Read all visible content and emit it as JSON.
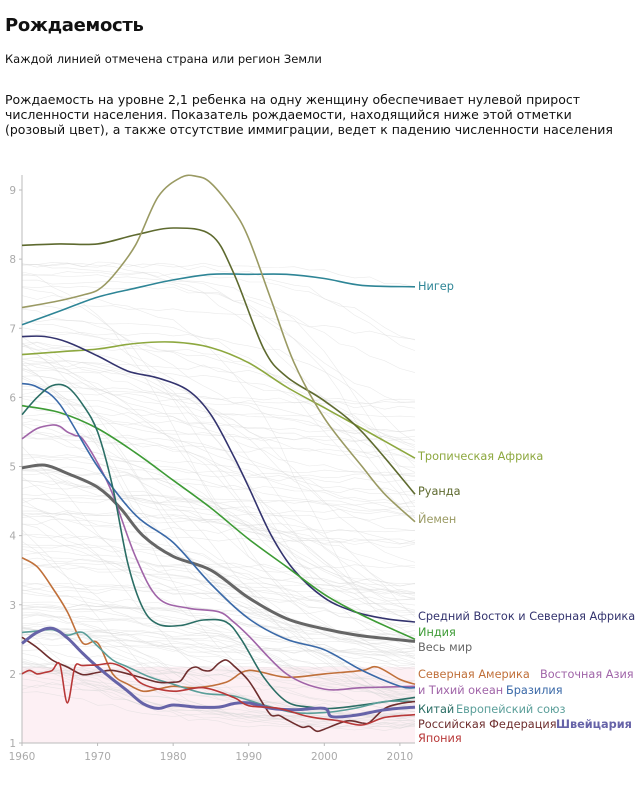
{
  "title": "Рождаемость",
  "subtitle": "Каждой линией отмечена страна или регион Земли",
  "description": "Рождаемость на уровне 2,1 ребенка на одну женщину обеспечивает нулевой прирост численности населения. Показатель рождаемости, находящийся ниже этой отметки (розовый цвет), а также отсутствие иммиграции, ведет к падению численности населения",
  "chart_data": {
    "type": "line",
    "title": "Рождаемость",
    "xlabel": "",
    "ylabel": "",
    "xlim": [
      1960,
      2012
    ],
    "ylim": [
      1,
      9.2
    ],
    "x_ticks": [
      "1960",
      "1970",
      "1980",
      "1990",
      "2000",
      "2010"
    ],
    "y_ticks": [
      "1",
      "2",
      "3",
      "4",
      "5",
      "6",
      "7",
      "8",
      "9"
    ],
    "replacement_level": 2.1,
    "replacement_fill": "#fdf0f4",
    "background_lines_color": "#d8d8d8",
    "series": [
      {
        "name": "Нигер",
        "color": "#2e8596",
        "width": 1.6,
        "x": [
          1960,
          1965,
          1970,
          1975,
          1980,
          1985,
          1990,
          1995,
          2000,
          2005,
          2012
        ],
        "values": [
          7.05,
          7.25,
          7.45,
          7.58,
          7.7,
          7.78,
          7.78,
          7.78,
          7.72,
          7.62,
          7.6
        ]
      },
      {
        "name": "Тропическая Африка",
        "color": "#8da83f",
        "width": 1.6,
        "x": [
          1960,
          1965,
          1970,
          1975,
          1980,
          1985,
          1990,
          1995,
          2000,
          2005,
          2012
        ],
        "values": [
          6.62,
          6.66,
          6.7,
          6.78,
          6.8,
          6.72,
          6.5,
          6.15,
          5.85,
          5.55,
          5.12
        ]
      },
      {
        "name": "Руанда",
        "color": "#5e6a2f",
        "width": 1.6,
        "x": [
          1960,
          1965,
          1970,
          1975,
          1980,
          1985,
          1988,
          1992,
          1995,
          2000,
          2005,
          2012
        ],
        "values": [
          8.2,
          8.22,
          8.22,
          8.35,
          8.45,
          8.35,
          7.8,
          6.7,
          6.3,
          5.95,
          5.5,
          4.6
        ]
      },
      {
        "name": "Йемен",
        "color": "#9a9a63",
        "width": 1.6,
        "x": [
          1960,
          1965,
          1968,
          1970,
          1972,
          1975,
          1978,
          1981,
          1983,
          1985,
          1988,
          1990,
          1993,
          1996,
          2000,
          2005,
          2008,
          2012
        ],
        "values": [
          7.3,
          7.4,
          7.48,
          7.55,
          7.75,
          8.2,
          8.9,
          9.18,
          9.2,
          9.1,
          8.7,
          8.3,
          7.4,
          6.5,
          5.7,
          5.0,
          4.6,
          4.2
        ]
      },
      {
        "name": "Средний Восток и Северная Африка",
        "color": "#33336e",
        "width": 1.6,
        "x": [
          1960,
          1963,
          1966,
          1970,
          1974,
          1978,
          1982,
          1985,
          1988,
          1990,
          1993,
          1996,
          2000,
          2004,
          2008,
          2012
        ],
        "values": [
          6.88,
          6.88,
          6.8,
          6.6,
          6.38,
          6.28,
          6.1,
          5.75,
          5.15,
          4.7,
          4.0,
          3.5,
          3.1,
          2.9,
          2.8,
          2.75
        ]
      },
      {
        "name": "Индия",
        "color": "#3d9b35",
        "width": 1.6,
        "x": [
          1960,
          1965,
          1970,
          1975,
          1980,
          1985,
          1990,
          1995,
          2000,
          2005,
          2012
        ],
        "values": [
          5.88,
          5.78,
          5.55,
          5.2,
          4.8,
          4.4,
          3.95,
          3.55,
          3.15,
          2.85,
          2.5
        ]
      },
      {
        "name": "Весь мир",
        "color": "#666666",
        "width": 3,
        "x": [
          1960,
          1963,
          1966,
          1970,
          1973,
          1976,
          1980,
          1985,
          1990,
          1995,
          2000,
          2005,
          2012
        ],
        "values": [
          4.98,
          5.02,
          4.9,
          4.7,
          4.4,
          4.0,
          3.7,
          3.5,
          3.1,
          2.8,
          2.65,
          2.55,
          2.47
        ]
      },
      {
        "name": "Северная Америка",
        "color": "#c0703a",
        "width": 1.6,
        "x": [
          1960,
          1962,
          1964,
          1966,
          1968,
          1970,
          1972,
          1974,
          1976,
          1978,
          1980,
          1983,
          1987,
          1990,
          1995,
          2000,
          2005,
          2007,
          2010,
          2012
        ],
        "values": [
          3.68,
          3.55,
          3.25,
          2.9,
          2.45,
          2.45,
          2.0,
          1.85,
          1.75,
          1.78,
          1.82,
          1.8,
          1.88,
          2.05,
          1.95,
          2.0,
          2.05,
          2.1,
          1.92,
          1.85
        ]
      },
      {
        "name": "Восточная Азия и Тихий океан",
        "color": "#a064a8",
        "width": 1.6,
        "x": [
          1960,
          1962,
          1964,
          1965,
          1966,
          1967,
          1968,
          1970,
          1972,
          1975,
          1978,
          1982,
          1986,
          1988,
          1990,
          1995,
          2000,
          2005,
          2012
        ],
        "values": [
          5.4,
          5.55,
          5.6,
          5.58,
          5.5,
          5.45,
          5.4,
          5.05,
          4.6,
          3.7,
          3.1,
          2.95,
          2.9,
          2.75,
          2.55,
          2.0,
          1.78,
          1.8,
          1.82
        ]
      },
      {
        "name": "Бразилия",
        "color": "#3a69a8",
        "width": 1.6,
        "x": [
          1960,
          1962,
          1965,
          1970,
          1975,
          1980,
          1985,
          1990,
          1995,
          2000,
          2005,
          2010,
          2012
        ],
        "values": [
          6.2,
          6.15,
          5.9,
          5.0,
          4.3,
          3.9,
          3.3,
          2.8,
          2.5,
          2.35,
          2.05,
          1.82,
          1.8
        ]
      },
      {
        "name": "Китай",
        "color": "#2b6e65",
        "width": 1.6,
        "x": [
          1960,
          1962,
          1964,
          1966,
          1968,
          1970,
          1972,
          1974,
          1976,
          1978,
          1981,
          1984,
          1987,
          1989,
          1992,
          1995,
          1998,
          2001,
          2005,
          2012
        ],
        "values": [
          5.75,
          6.0,
          6.17,
          6.15,
          5.9,
          5.5,
          4.7,
          3.6,
          2.95,
          2.72,
          2.7,
          2.78,
          2.75,
          2.5,
          1.95,
          1.6,
          1.52,
          1.5,
          1.55,
          1.66
        ]
      },
      {
        "name": "Европейский союз",
        "color": "#5a9e99",
        "width": 1.6,
        "x": [
          1960,
          1962,
          1964,
          1966,
          1968,
          1970,
          1972,
          1974,
          1977,
          1980,
          1984,
          1988,
          1992,
          1996,
          2000,
          2004,
          2008,
          2012
        ],
        "values": [
          2.6,
          2.62,
          2.64,
          2.56,
          2.6,
          2.4,
          2.2,
          2.1,
          1.95,
          1.85,
          1.72,
          1.68,
          1.55,
          1.44,
          1.44,
          1.5,
          1.6,
          1.6
        ]
      },
      {
        "name": "Российская Федерация",
        "color": "#6e2e2e",
        "width": 1.6,
        "x": [
          1960,
          1962,
          1964,
          1966,
          1968,
          1970,
          1972,
          1975,
          1978,
          1980,
          1981,
          1982,
          1983,
          1984,
          1985,
          1986,
          1987,
          1988,
          1990,
          1992,
          1993,
          1994,
          1995,
          1997,
          1998,
          1999,
          2000,
          2003,
          2005,
          2006,
          2008,
          2010,
          2012
        ],
        "values": [
          2.53,
          2.38,
          2.2,
          2.1,
          1.99,
          2.02,
          2.05,
          1.97,
          1.88,
          1.88,
          1.9,
          2.05,
          2.1,
          2.05,
          2.05,
          2.15,
          2.2,
          2.12,
          1.9,
          1.55,
          1.4,
          1.4,
          1.34,
          1.23,
          1.24,
          1.17,
          1.2,
          1.32,
          1.29,
          1.3,
          1.5,
          1.57,
          1.6
        ]
      },
      {
        "name": "Швейцария",
        "color": "#6663a8",
        "width": 3,
        "x": [
          1960,
          1962,
          1964,
          1966,
          1968,
          1970,
          1972,
          1974,
          1976,
          1978,
          1980,
          1983,
          1986,
          1988,
          1990,
          1993,
          1996,
          2000,
          2001,
          2004,
          2008,
          2012
        ],
        "values": [
          2.44,
          2.6,
          2.66,
          2.52,
          2.3,
          2.1,
          1.92,
          1.75,
          1.57,
          1.5,
          1.55,
          1.52,
          1.52,
          1.57,
          1.58,
          1.5,
          1.48,
          1.5,
          1.38,
          1.4,
          1.48,
          1.52
        ]
      },
      {
        "name": "Япония",
        "color": "#b83838",
        "width": 1.6,
        "x": [
          1960,
          1961,
          1962,
          1963,
          1964,
          1965,
          1966,
          1967,
          1968,
          1970,
          1972,
          1974,
          1976,
          1980,
          1984,
          1988,
          1990,
          1994,
          1998,
          2002,
          2005,
          2008,
          2012
        ],
        "values": [
          2.0,
          2.05,
          2.0,
          2.02,
          2.05,
          2.14,
          1.58,
          2.1,
          2.12,
          2.13,
          2.15,
          2.05,
          1.85,
          1.75,
          1.8,
          1.66,
          1.54,
          1.5,
          1.38,
          1.32,
          1.26,
          1.37,
          1.41
        ]
      }
    ],
    "labels": [
      {
        "series": "Нигер",
        "text": "Нигер"
      },
      {
        "series": "Тропическая Африка",
        "text": "Тропическая Африка"
      },
      {
        "series": "Руанда",
        "text": "Руанда"
      },
      {
        "series": "Йемен",
        "text": "Йемен"
      },
      {
        "series": "Средний Восток и Северная Африка",
        "text": "Средний Восток и Северная Африка"
      },
      {
        "series": "Индия",
        "text": "Индия"
      },
      {
        "series": "Весь мир",
        "text": "Весь мир"
      },
      {
        "series": "Северная Америка",
        "text": "Северная Америка"
      },
      {
        "series": "Восточная Азия и Тихий океан",
        "text": "Восточная Азия"
      },
      {
        "series": "Восточная Азия и Тихий океан",
        "text": "и Тихий океан"
      },
      {
        "series": "Бразилия",
        "text": "Бразилия"
      },
      {
        "series": "Китай",
        "text": "Китай"
      },
      {
        "series": "Европейский союз",
        "text": "Европейский союз"
      },
      {
        "series": "Российская Федерация",
        "text": "Российская Федерация"
      },
      {
        "series": "Швейцария",
        "text": "Швейцария",
        "bold": true
      },
      {
        "series": "Япония",
        "text": "Япония"
      }
    ]
  }
}
